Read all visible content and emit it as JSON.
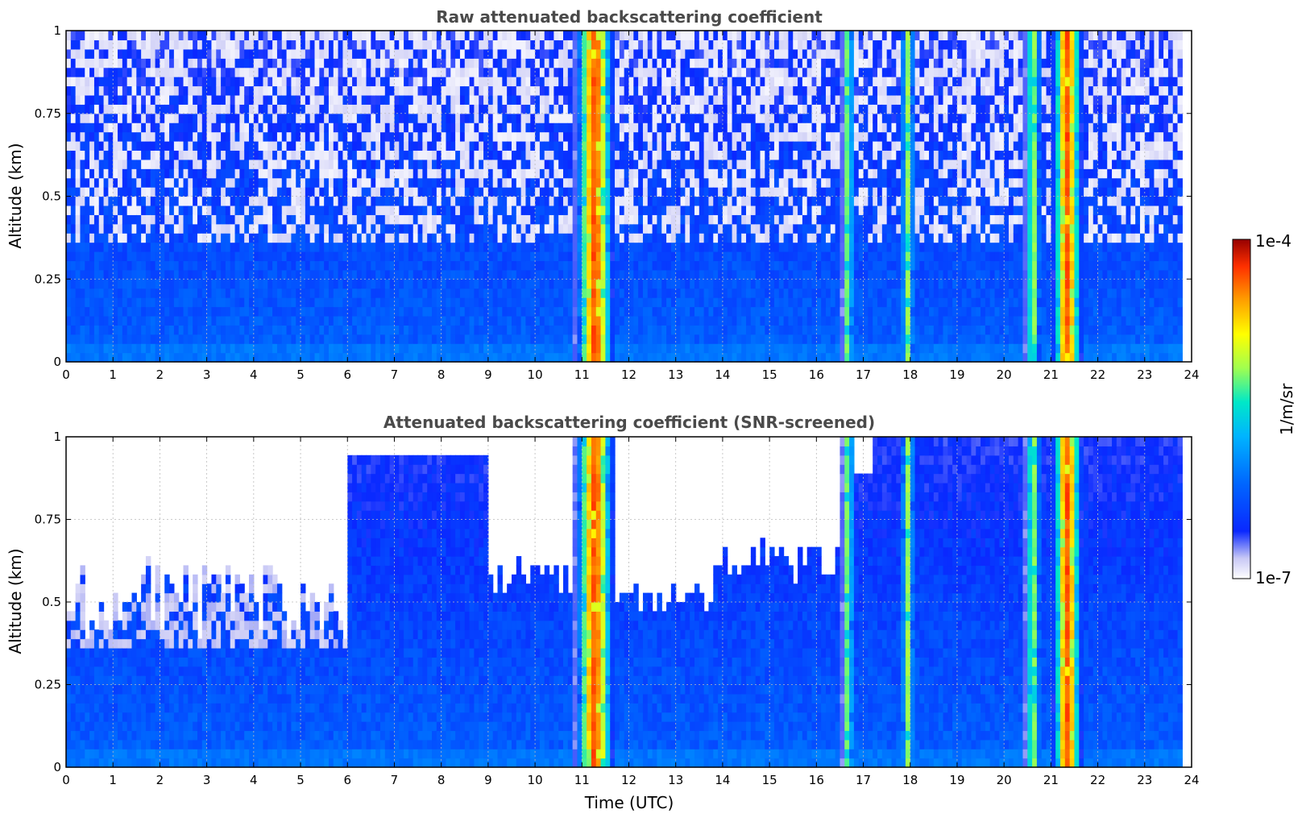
{
  "colors": {
    "title": "#4a4a4a",
    "background": "#ffffff",
    "grid": "#bbbbbb",
    "colormap": [
      "#ffffff",
      "#c8c8f5",
      "#0a28ff",
      "#0066ff",
      "#00b4ff",
      "#00e8c8",
      "#a0ff50",
      "#ffff00",
      "#ffa000",
      "#ff3000",
      "#960000"
    ]
  },
  "colorbar": {
    "label": "1/m/sr",
    "max_label": "1e-4",
    "min_label": "1e-7",
    "range": [
      1e-07,
      0.0001
    ],
    "scale": "log"
  },
  "chart_data": [
    {
      "type": "heatmap",
      "title": "Raw attenuated backscattering coefficient",
      "xlabel": "",
      "ylabel": "Altitude (km)",
      "xlim": [
        0,
        24
      ],
      "ylim": [
        0,
        1
      ],
      "xticks": [
        "0",
        "1",
        "2",
        "3",
        "4",
        "5",
        "6",
        "7",
        "8",
        "9",
        "10",
        "11",
        "12",
        "13",
        "14",
        "15",
        "16",
        "17",
        "18",
        "19",
        "20",
        "21",
        "22",
        "23",
        "24"
      ],
      "yticks": [
        "0",
        "0.25",
        "0.5",
        "0.75",
        "1"
      ],
      "grid": true,
      "data_end_time": 23.8,
      "cloud_bands": [
        {
          "start": 10.95,
          "end": 11.6,
          "intensity": "high"
        },
        {
          "start": 16.6,
          "end": 16.75,
          "intensity": "medium"
        },
        {
          "start": 17.85,
          "end": 18.05,
          "intensity": "medium"
        },
        {
          "start": 20.5,
          "end": 20.75,
          "intensity": "medium"
        },
        {
          "start": 21.1,
          "end": 21.6,
          "intensity": "high"
        }
      ]
    },
    {
      "type": "heatmap",
      "title": "Attenuated backscattering coefficient (SNR-screened)",
      "xlabel": "Time (UTC)",
      "ylabel": "Altitude (km)",
      "xlim": [
        0,
        24
      ],
      "ylim": [
        0,
        1
      ],
      "xticks": [
        "0",
        "1",
        "2",
        "3",
        "4",
        "5",
        "6",
        "7",
        "8",
        "9",
        "10",
        "11",
        "12",
        "13",
        "14",
        "15",
        "16",
        "17",
        "18",
        "19",
        "20",
        "21",
        "22",
        "23",
        "24"
      ],
      "yticks": [
        "0",
        "0.25",
        "0.5",
        "0.75",
        "1"
      ],
      "grid": true,
      "data_end_time": 23.8,
      "cloud_bands": [
        {
          "start": 10.95,
          "end": 11.6,
          "intensity": "high"
        },
        {
          "start": 16.6,
          "end": 16.75,
          "intensity": "medium"
        },
        {
          "start": 17.85,
          "end": 18.05,
          "intensity": "medium"
        },
        {
          "start": 20.5,
          "end": 20.75,
          "intensity": "medium"
        },
        {
          "start": 21.1,
          "end": 21.6,
          "intensity": "high"
        }
      ]
    }
  ]
}
